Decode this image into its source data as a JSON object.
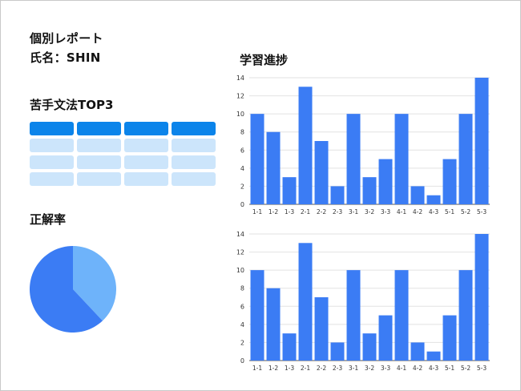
{
  "report": {
    "title": "個別レポート",
    "student_line": "氏名：SHIN"
  },
  "sections": {
    "weak_grammar": "苦手文法TOP3",
    "accuracy": "正解率",
    "progress": "学習進捗"
  },
  "colors": {
    "bar": "#3b7cf4",
    "pie_main": "#3b7cf4",
    "pie_secondary": "#6eb3fa",
    "table_header": "#0b84ea",
    "table_cell": "#cce5fb"
  },
  "weak_table": {
    "columns": 4,
    "header_rows": 1,
    "body_rows": 3
  },
  "chart_data": [
    {
      "type": "pie",
      "values": [
        62,
        38
      ],
      "colors": [
        "#3b7cf4",
        "#6eb3fa"
      ]
    },
    {
      "type": "bar",
      "categories": [
        "1-1",
        "1-2",
        "1-3",
        "2-1",
        "2-2",
        "2-3",
        "3-1",
        "3-2",
        "3-3",
        "4-1",
        "4-2",
        "4-3",
        "5-1",
        "5-2",
        "5-3"
      ],
      "values": [
        10,
        8,
        3,
        13,
        7,
        2,
        10,
        3,
        5,
        10,
        2,
        1,
        5,
        10,
        14
      ],
      "ylim": [
        0,
        14
      ],
      "yticks": [
        0,
        2,
        4,
        6,
        8,
        10,
        12,
        14
      ],
      "grid": true
    },
    {
      "type": "bar",
      "categories": [
        "1-1",
        "1-2",
        "1-3",
        "2-1",
        "2-2",
        "2-3",
        "3-1",
        "3-2",
        "3-3",
        "4-1",
        "4-2",
        "4-3",
        "5-1",
        "5-2",
        "5-3"
      ],
      "values": [
        10,
        8,
        3,
        13,
        7,
        2,
        10,
        3,
        5,
        10,
        2,
        1,
        5,
        10,
        14
      ],
      "ylim": [
        0,
        14
      ],
      "yticks": [
        0,
        2,
        4,
        6,
        8,
        10,
        12,
        14
      ],
      "grid": true
    }
  ]
}
